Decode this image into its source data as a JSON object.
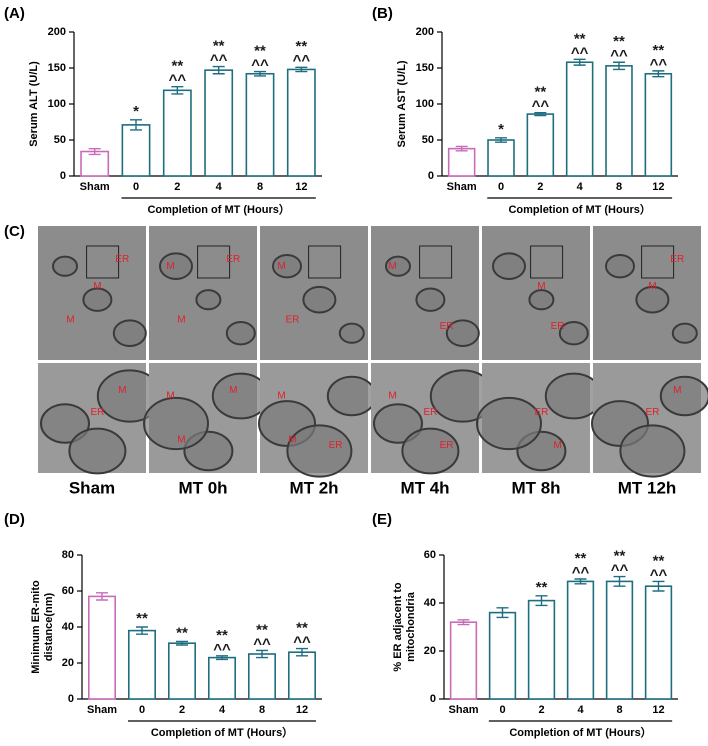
{
  "chart_data": [
    {
      "type": "bar",
      "panel_label": "(A)",
      "ylabel": [
        "Serum ALT (U/L)"
      ],
      "xlabel": "Completion of MT (Hours）",
      "categories": [
        "Sham",
        "0",
        "2",
        "4",
        "8",
        "12"
      ],
      "values": [
        34,
        71,
        119,
        147,
        142,
        148
      ],
      "errors": [
        4,
        7,
        5,
        5,
        3,
        3
      ],
      "colors": [
        "#c86bb9",
        "#1f6e80",
        "#1f6e80",
        "#1f6e80",
        "#1f6e80",
        "#1f6e80"
      ],
      "significance": [
        null,
        "*",
        "**",
        "**",
        "**",
        "**"
      ],
      "significance_vs_0h": [
        null,
        null,
        "^^",
        "^^",
        "^^",
        "^^"
      ],
      "ylim": [
        0,
        200
      ],
      "yticks": [
        0,
        50,
        100,
        150,
        200
      ]
    },
    {
      "type": "bar",
      "panel_label": "(B)",
      "ylabel": [
        "Serum AST (U/L)"
      ],
      "xlabel": "Completion of MT (Hours）",
      "categories": [
        "Sham",
        "0",
        "2",
        "4",
        "8",
        "12"
      ],
      "values": [
        38,
        50,
        86,
        158,
        153,
        142
      ],
      "errors": [
        3,
        3,
        2,
        4,
        5,
        4
      ],
      "colors": [
        "#c86bb9",
        "#1f6e80",
        "#1f6e80",
        "#1f6e80",
        "#1f6e80",
        "#1f6e80"
      ],
      "significance": [
        null,
        "*",
        "**",
        "**",
        "**",
        "**"
      ],
      "significance_vs_0h": [
        null,
        null,
        "^^",
        "^^",
        "^^",
        "^^"
      ],
      "ylim": [
        0,
        200
      ],
      "yticks": [
        0,
        50,
        100,
        150,
        200
      ]
    },
    {
      "type": "bar",
      "panel_label": "(D)",
      "ylabel": [
        "Minimum ER-mito",
        "distance(nm)"
      ],
      "xlabel": "Completion of MT (Hours）",
      "categories": [
        "Sham",
        "0",
        "2",
        "4",
        "8",
        "12"
      ],
      "values": [
        57,
        38,
        31,
        23,
        25,
        26
      ],
      "errors": [
        2,
        2,
        1,
        1,
        2,
        2
      ],
      "colors": [
        "#c86bb9",
        "#1f6e80",
        "#1f6e80",
        "#1f6e80",
        "#1f6e80",
        "#1f6e80"
      ],
      "significance": [
        null,
        "**",
        "**",
        "**",
        "**",
        "**"
      ],
      "significance_vs_0h": [
        null,
        null,
        null,
        "^^",
        "^^",
        "^^"
      ],
      "ylim": [
        0,
        80
      ],
      "yticks": [
        0,
        20,
        40,
        60,
        80
      ]
    },
    {
      "type": "bar",
      "panel_label": "(E)",
      "ylabel": [
        "% ER adjacent to",
        "mitochondria"
      ],
      "xlabel": "Completion of MT (Hours）",
      "categories": [
        "Sham",
        "0",
        "2",
        "4",
        "8",
        "12"
      ],
      "values": [
        32,
        36,
        41,
        49,
        49,
        47
      ],
      "errors": [
        1,
        2,
        2,
        1,
        2,
        2
      ],
      "colors": [
        "#c86bb9",
        "#1f6e80",
        "#1f6e80",
        "#1f6e80",
        "#1f6e80",
        "#1f6e80"
      ],
      "significance": [
        null,
        null,
        "**",
        "**",
        "**",
        "**"
      ],
      "significance_vs_0h": [
        null,
        null,
        null,
        "^^",
        "^^",
        "^^"
      ],
      "ylim": [
        0,
        60
      ],
      "yticks": [
        0,
        20,
        40,
        60
      ]
    }
  ],
  "micrographs": {
    "panel_label": "(C)",
    "columns": [
      {
        "label": "Sham",
        "top": [
          "M",
          "ER",
          "M"
        ],
        "bottom": [
          "ER",
          "M"
        ]
      },
      {
        "label": "MT 0h",
        "top": [
          "ER",
          "M",
          "M"
        ],
        "bottom": [
          "M",
          "M",
          "M"
        ]
      },
      {
        "label": "MT 2h",
        "top": [
          "ER",
          "M"
        ],
        "bottom": [
          "M",
          "M",
          "ER"
        ]
      },
      {
        "label": "MT 4h",
        "top": [
          "M",
          "ER"
        ],
        "bottom": [
          "M",
          "ER",
          "ER"
        ]
      },
      {
        "label": "MT 8h",
        "top": [
          "ER",
          "M"
        ],
        "bottom": [
          "M",
          "ER"
        ]
      },
      {
        "label": "MT 12h",
        "top": [
          "M",
          "ER"
        ],
        "bottom": [
          "ER",
          "M"
        ]
      }
    ]
  }
}
